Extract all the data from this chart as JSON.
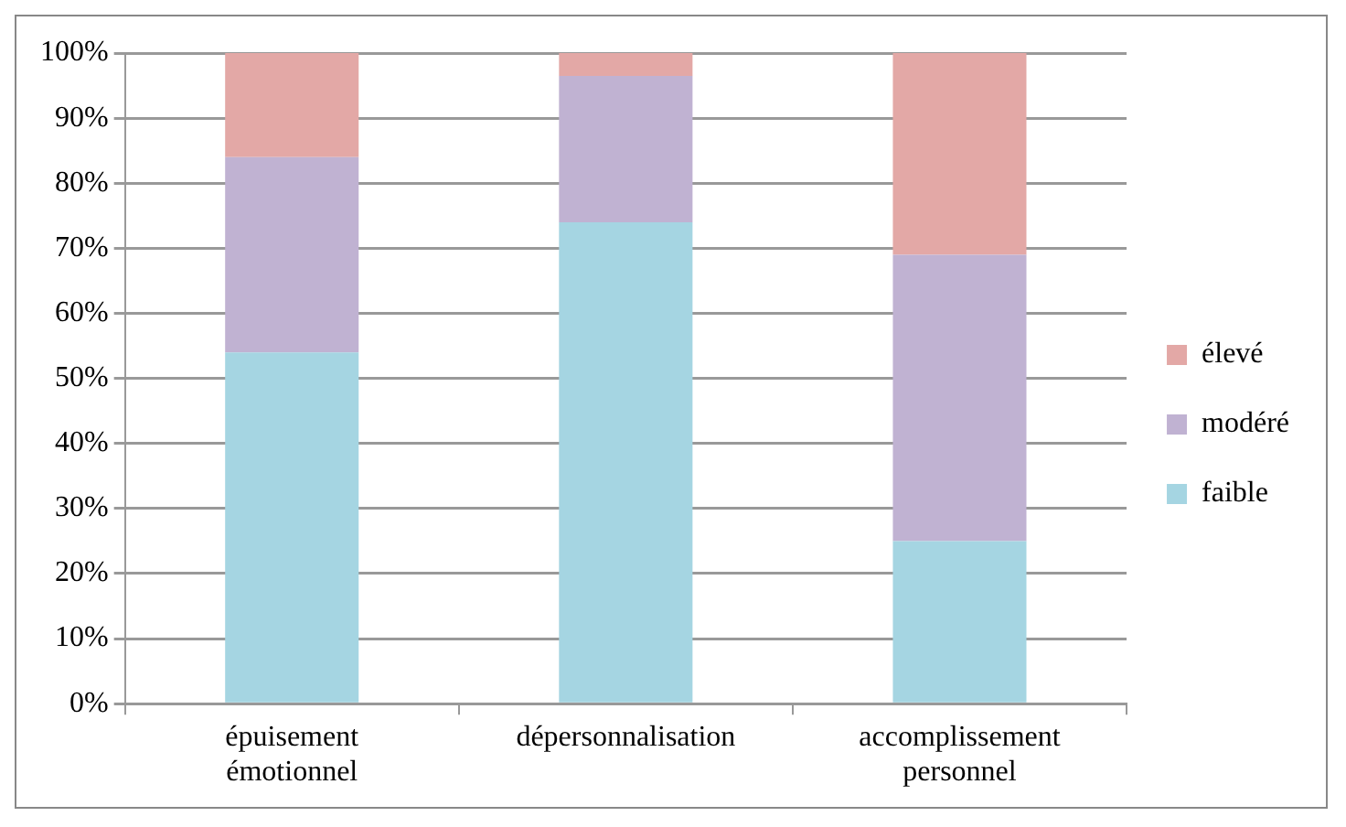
{
  "chart_data": {
    "type": "bar",
    "stacked": true,
    "categories": [
      "épuisement émotionnel",
      "dépersonnalisation",
      "accomplissement personnel"
    ],
    "series": [
      {
        "name": "faible",
        "color": "#a5d5e2",
        "values": [
          54,
          74,
          25
        ]
      },
      {
        "name": "modéré",
        "color": "#c0b2d2",
        "values": [
          30,
          22.5,
          44
        ]
      },
      {
        "name": "élevé",
        "color": "#e3a8a6",
        "values": [
          16,
          3.5,
          31
        ]
      }
    ],
    "ylim": [
      0,
      100
    ],
    "yticks": [
      {
        "value": 0,
        "label": "0%"
      },
      {
        "value": 10,
        "label": "10%"
      },
      {
        "value": 20,
        "label": "20%"
      },
      {
        "value": 30,
        "label": "30%"
      },
      {
        "value": 40,
        "label": "40%"
      },
      {
        "value": 50,
        "label": "50%"
      },
      {
        "value": 60,
        "label": "60%"
      },
      {
        "value": 70,
        "label": "70%"
      },
      {
        "value": 80,
        "label": "80%"
      },
      {
        "value": 90,
        "label": "90%"
      },
      {
        "value": 100,
        "label": "100%"
      }
    ],
    "grid": "y",
    "legend": "right"
  }
}
